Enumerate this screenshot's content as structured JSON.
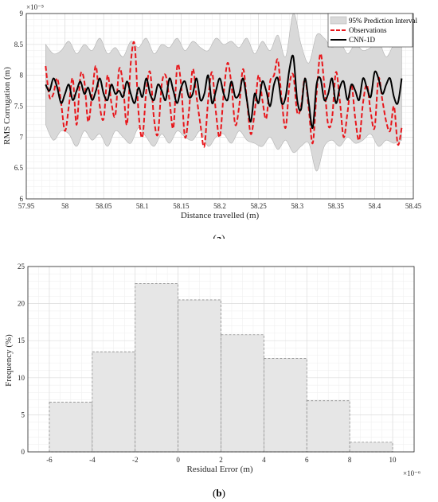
{
  "colors": {
    "band": "#d9d9d9",
    "band_edge": "#b3b3b3",
    "observations": "#e8161b",
    "cnn": "#000000",
    "bar_fill": "#e6e6e6",
    "bar_edge": "#8c8c8c",
    "grid_major": "#dcdcdc",
    "grid_minor": "#eeeeee"
  },
  "panels": {
    "a_label_open": "(",
    "a_label_letter": "a",
    "a_label_close": ")",
    "b_label_open": "(",
    "b_label_letter": "b",
    "b_label_close": ")"
  },
  "chart_data": [
    {
      "type": "line",
      "xlabel": "Distance travelled (m)",
      "ylabel": "RMS Corrugation (m)",
      "y_exponent": "×10⁻⁵",
      "xlim": [
        57.95,
        58.45
      ],
      "ylim": [
        6,
        9
      ],
      "xticks": [
        "57.95",
        "58",
        "58.05",
        "58.1",
        "58.15",
        "58.2",
        "58.25",
        "58.3",
        "58.35",
        "58.4",
        "58.45"
      ],
      "yticks": [
        "6",
        "6.5",
        "7",
        "7.5",
        "8",
        "8.5",
        "9"
      ],
      "grid": true,
      "legend_position": "top-right",
      "legend": [
        "95% Prediction Interval",
        "Observations",
        "CNN-1D"
      ],
      "series": [
        {
          "name": "Observations",
          "style": "dashed",
          "x": [
            57.975,
            57.98,
            57.985,
            57.99,
            57.995,
            58.0,
            58.005,
            58.01,
            58.015,
            58.02,
            58.025,
            58.03,
            58.035,
            58.04,
            58.045,
            58.05,
            58.055,
            58.06,
            58.065,
            58.07,
            58.075,
            58.08,
            58.085,
            58.09,
            58.095,
            58.1,
            58.105,
            58.11,
            58.115,
            58.12,
            58.125,
            58.13,
            58.135,
            58.14,
            58.145,
            58.15,
            58.155,
            58.16,
            58.165,
            58.17,
            58.175,
            58.18,
            58.185,
            58.19,
            58.195,
            58.2,
            58.205,
            58.21,
            58.215,
            58.22,
            58.225,
            58.23,
            58.235,
            58.24,
            58.245,
            58.25,
            58.255,
            58.26,
            58.265,
            58.27,
            58.275,
            58.28,
            58.285,
            58.29,
            58.295,
            58.3,
            58.305,
            58.31,
            58.315,
            58.32,
            58.325,
            58.33,
            58.335,
            58.34,
            58.345,
            58.35,
            58.355,
            58.36,
            58.365,
            58.37,
            58.375,
            58.38,
            58.385,
            58.39,
            58.395,
            58.4,
            58.405,
            58.41,
            58.415,
            58.42,
            58.425,
            58.43,
            58.435
          ],
          "y": [
            8.15,
            7.65,
            7.7,
            7.95,
            7.55,
            7.1,
            7.5,
            7.95,
            7.2,
            8.0,
            7.9,
            7.25,
            7.7,
            8.15,
            7.5,
            7.3,
            8.0,
            7.55,
            7.35,
            8.1,
            7.85,
            7.2,
            8.2,
            8.5,
            7.4,
            7.0,
            7.75,
            8.05,
            7.3,
            7.05,
            7.85,
            8.0,
            7.6,
            7.15,
            8.15,
            7.85,
            7.0,
            7.4,
            8.1,
            7.65,
            7.2,
            6.85,
            7.6,
            8.05,
            7.4,
            7.0,
            7.7,
            8.2,
            7.85,
            7.2,
            7.5,
            8.1,
            7.6,
            7.05,
            7.4,
            8.0,
            7.6,
            7.3,
            7.9,
            8.0,
            8.25,
            7.6,
            7.15,
            7.85,
            8.0,
            7.4,
            7.5,
            7.95,
            7.45,
            6.9,
            7.7,
            8.35,
            7.85,
            7.2,
            7.3,
            8.05,
            7.6,
            7.0,
            7.4,
            7.85,
            7.3,
            6.95,
            7.55,
            7.85,
            7.4,
            7.15,
            7.95,
            7.6,
            7.25,
            7.1,
            7.5,
            6.88,
            7.15
          ]
        },
        {
          "name": "CNN-1D",
          "style": "solid",
          "x": [
            57.975,
            57.98,
            57.985,
            57.99,
            57.995,
            58.0,
            58.005,
            58.01,
            58.015,
            58.02,
            58.025,
            58.03,
            58.035,
            58.04,
            58.045,
            58.05,
            58.055,
            58.06,
            58.065,
            58.07,
            58.075,
            58.08,
            58.085,
            58.09,
            58.095,
            58.1,
            58.105,
            58.11,
            58.115,
            58.12,
            58.125,
            58.13,
            58.135,
            58.14,
            58.145,
            58.15,
            58.155,
            58.16,
            58.165,
            58.17,
            58.175,
            58.18,
            58.185,
            58.19,
            58.195,
            58.2,
            58.205,
            58.21,
            58.215,
            58.22,
            58.225,
            58.23,
            58.235,
            58.24,
            58.245,
            58.25,
            58.255,
            58.26,
            58.265,
            58.27,
            58.275,
            58.28,
            58.285,
            58.29,
            58.295,
            58.3,
            58.305,
            58.31,
            58.315,
            58.32,
            58.325,
            58.33,
            58.335,
            58.34,
            58.345,
            58.35,
            58.355,
            58.36,
            58.365,
            58.37,
            58.375,
            58.38,
            58.385,
            58.39,
            58.395,
            58.4,
            58.405,
            58.41,
            58.415,
            58.42,
            58.425,
            58.43,
            58.435
          ],
          "y": [
            7.85,
            7.75,
            7.95,
            7.8,
            7.55,
            7.7,
            7.85,
            7.6,
            7.75,
            7.9,
            7.7,
            7.8,
            7.6,
            7.75,
            7.95,
            7.7,
            7.6,
            7.85,
            7.7,
            7.75,
            7.65,
            7.9,
            7.7,
            7.55,
            7.8,
            7.65,
            7.95,
            7.7,
            7.6,
            7.85,
            7.75,
            7.6,
            7.95,
            7.75,
            7.55,
            7.8,
            7.9,
            7.65,
            7.7,
            7.95,
            7.6,
            7.7,
            8.0,
            7.55,
            7.75,
            7.95,
            7.7,
            7.6,
            7.9,
            7.65,
            7.7,
            7.95,
            7.6,
            7.25,
            7.7,
            7.55,
            7.9,
            7.75,
            7.5,
            7.85,
            7.95,
            7.55,
            7.65,
            8.1,
            8.3,
            7.6,
            7.45,
            7.95,
            7.55,
            7.15,
            7.85,
            7.95,
            7.6,
            7.7,
            7.95,
            7.55,
            7.8,
            7.9,
            7.6,
            7.85,
            7.75,
            7.6,
            7.95,
            7.8,
            7.65,
            8.05,
            7.95,
            7.7,
            7.85,
            7.95,
            7.65,
            7.55,
            7.95
          ]
        },
        {
          "name": "95% Prediction Interval",
          "style": "band",
          "x": [
            57.975,
            57.985,
            57.995,
            58.005,
            58.015,
            58.025,
            58.035,
            58.045,
            58.055,
            58.065,
            58.075,
            58.085,
            58.095,
            58.105,
            58.115,
            58.125,
            58.135,
            58.145,
            58.155,
            58.165,
            58.175,
            58.185,
            58.195,
            58.205,
            58.215,
            58.225,
            58.235,
            58.245,
            58.255,
            58.265,
            58.275,
            58.285,
            58.295,
            58.305,
            58.315,
            58.325,
            58.335,
            58.345,
            58.355,
            58.365,
            58.375,
            58.385,
            58.395,
            58.405,
            58.415,
            58.425,
            58.435
          ],
          "upper": [
            8.5,
            8.35,
            8.4,
            8.55,
            8.35,
            8.5,
            8.4,
            8.6,
            8.35,
            8.45,
            8.3,
            8.55,
            8.45,
            8.6,
            8.35,
            8.5,
            8.45,
            8.6,
            8.4,
            8.55,
            8.45,
            8.4,
            8.6,
            8.5,
            8.55,
            8.45,
            8.6,
            8.35,
            8.55,
            8.4,
            8.65,
            8.3,
            9.0,
            8.5,
            8.2,
            8.65,
            8.6,
            8.45,
            8.55,
            8.35,
            8.5,
            8.4,
            8.45,
            8.55,
            8.3,
            8.5,
            8.55
          ],
          "lower": [
            7.2,
            6.95,
            7.1,
            7.05,
            6.85,
            7.1,
            6.95,
            7.05,
            6.85,
            7.1,
            7.0,
            6.9,
            7.15,
            7.0,
            6.85,
            7.05,
            6.9,
            7.1,
            7.0,
            6.95,
            7.1,
            6.85,
            7.0,
            7.05,
            6.9,
            7.1,
            6.95,
            6.9,
            6.85,
            7.0,
            6.8,
            6.95,
            6.75,
            6.85,
            6.9,
            6.45,
            6.85,
            6.95,
            6.85,
            7.0,
            6.9,
            6.95,
            7.05,
            6.85,
            6.95,
            6.9,
            6.95
          ]
        }
      ]
    },
    {
      "type": "bar",
      "xlabel": "Residual Error (m)",
      "ylabel": "Frequency (%)",
      "x_exponent": "×10⁻⁶",
      "xlim": [
        -7,
        11
      ],
      "ylim": [
        0,
        25
      ],
      "xticks": [
        "-6",
        "-4",
        "-2",
        "0",
        "2",
        "4",
        "6",
        "8",
        "10"
      ],
      "yticks": [
        "0",
        "5",
        "10",
        "15",
        "20",
        "25"
      ],
      "grid": true,
      "bins": [
        [
          -6,
          -4
        ],
        [
          -4,
          -2
        ],
        [
          -2,
          0
        ],
        [
          0,
          2
        ],
        [
          2,
          4
        ],
        [
          4,
          6
        ],
        [
          6,
          8
        ],
        [
          8,
          10
        ]
      ],
      "values": [
        6.7,
        13.5,
        22.7,
        20.5,
        15.8,
        12.6,
        6.9,
        1.3
      ]
    }
  ]
}
